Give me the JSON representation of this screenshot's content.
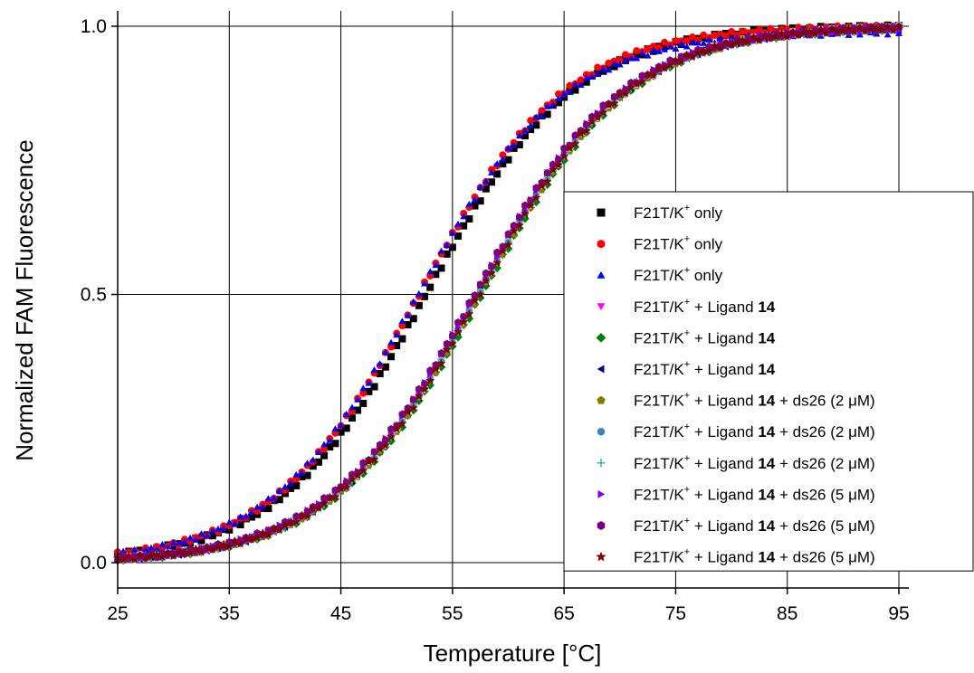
{
  "chart_data": {
    "type": "scatter",
    "xlabel": "Temperature [°C]",
    "ylabel": "Normalized FAM Fluorescence",
    "xlim": [
      25,
      95
    ],
    "ylim": [
      -0.05,
      1.0
    ],
    "x_ticks": [
      "25",
      "35",
      "45",
      "55",
      "65",
      "75",
      "85",
      "95"
    ],
    "y_ticks": [
      "0.0",
      "0.5",
      "1.0"
    ],
    "grid": true,
    "legend_position": "bottom-right",
    "curve_points": [
      25,
      27,
      29,
      31,
      33,
      35,
      37,
      39,
      41,
      43,
      45,
      47,
      49,
      51,
      53,
      55,
      57,
      59,
      61,
      63,
      65,
      67,
      69,
      71,
      73,
      75,
      77,
      79,
      81,
      83,
      85,
      87,
      89,
      91,
      93,
      95
    ],
    "series": [
      {
        "name": "F21T/K+ only",
        "marker": "square",
        "color": "#000000",
        "tm": 52.6,
        "slope": 0.152,
        "ymax": 1.0
      },
      {
        "name": "F21T/K+ only",
        "marker": "circle",
        "color": "#ff0000",
        "tm": 52.0,
        "slope": 0.152,
        "ymax": 1.0
      },
      {
        "name": "F21T/K+ only",
        "marker": "triangle-up",
        "color": "#0000ff",
        "tm": 51.8,
        "slope": 0.152,
        "ymax": 0.99
      },
      {
        "name": "F21T/K+ + Ligand 14",
        "marker": "triangle-down",
        "color": "#ff00ff",
        "tm": 57.2,
        "slope": 0.15,
        "ymax": 1.0
      },
      {
        "name": "F21T/K+ + Ligand 14",
        "marker": "diamond",
        "color": "#008000",
        "tm": 57.6,
        "slope": 0.15,
        "ymax": 1.0
      },
      {
        "name": "F21T/K+ + Ligand 14",
        "marker": "triangle-left",
        "color": "#000080",
        "tm": 57.3,
        "slope": 0.15,
        "ymax": 1.0
      },
      {
        "name": "F21T/K+ + Ligand 14 + ds26 (2 μM)",
        "marker": "pentagon",
        "color": "#808000",
        "tm": 57.4,
        "slope": 0.15,
        "ymax": 1.0
      },
      {
        "name": "F21T/K+ + Ligand 14 + ds26 (2 μM)",
        "marker": "sphere",
        "color": "#4a7fb5",
        "tm": 57.3,
        "slope": 0.15,
        "ymax": 1.0
      },
      {
        "name": "F21T/K+ + Ligand 14 + ds26 (2 μM)",
        "marker": "plus",
        "color": "#20b2aa",
        "tm": 57.3,
        "slope": 0.15,
        "ymax": 1.0
      },
      {
        "name": "F21T/K+ + Ligand 14 + ds26 (5 μM)",
        "marker": "triangle-right",
        "color": "#8000ff",
        "tm": 57.1,
        "slope": 0.15,
        "ymax": 1.0
      },
      {
        "name": "F21T/K+ + Ligand 14 + ds26 (5 μM)",
        "marker": "hexagon",
        "color": "#800080",
        "tm": 57.0,
        "slope": 0.15,
        "ymax": 1.0
      },
      {
        "name": "F21T/K+ + Ligand 14 + ds26 (5 μM)",
        "marker": "star",
        "color": "#800000",
        "tm": 57.4,
        "slope": 0.15,
        "ymax": 1.0
      }
    ],
    "legend": [
      {
        "prefix": "F21T/K",
        "sup": "+",
        "mid": " only",
        "bold": "",
        "tail": ""
      },
      {
        "prefix": "F21T/K",
        "sup": "+",
        "mid": " only",
        "bold": "",
        "tail": ""
      },
      {
        "prefix": "F21T/K",
        "sup": "+",
        "mid": " only",
        "bold": "",
        "tail": ""
      },
      {
        "prefix": "F21T/K",
        "sup": "+",
        "mid": " + Ligand ",
        "bold": "14",
        "tail": ""
      },
      {
        "prefix": "F21T/K",
        "sup": "+",
        "mid": " + Ligand ",
        "bold": "14",
        "tail": ""
      },
      {
        "prefix": "F21T/K",
        "sup": "+",
        "mid": " + Ligand ",
        "bold": "14",
        "tail": ""
      },
      {
        "prefix": "F21T/K",
        "sup": "+",
        "mid": " + Ligand ",
        "bold": "14",
        "tail": " + ds26 (2 μM)"
      },
      {
        "prefix": "F21T/K",
        "sup": "+",
        "mid": " + Ligand ",
        "bold": "14",
        "tail": " + ds26 (2 μM)"
      },
      {
        "prefix": "F21T/K",
        "sup": "+",
        "mid": " + Ligand ",
        "bold": "14",
        "tail": " + ds26 (2 μM)"
      },
      {
        "prefix": "F21T/K",
        "sup": "+",
        "mid": " + Ligand ",
        "bold": "14",
        "tail": " + ds26 (5 μM)"
      },
      {
        "prefix": "F21T/K",
        "sup": "+",
        "mid": " + Ligand ",
        "bold": "14",
        "tail": " + ds26 (5 μM)"
      },
      {
        "prefix": "F21T/K",
        "sup": "+",
        "mid": " + Ligand ",
        "bold": "14",
        "tail": " + ds26 (5 μM)"
      }
    ]
  }
}
